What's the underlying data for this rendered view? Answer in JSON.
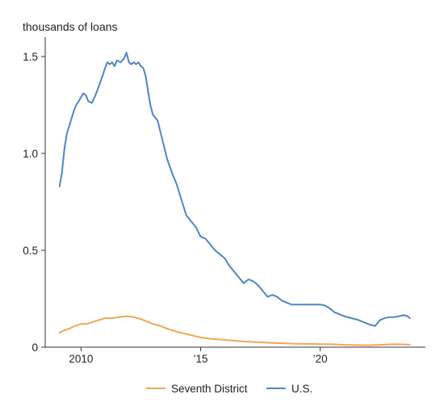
{
  "chart_data": {
    "type": "line",
    "title": "",
    "ylabel": "thousands of loans",
    "xlabel": "",
    "xlim": [
      2008.5,
      2024.4
    ],
    "ylim": [
      0,
      1.6
    ],
    "x_ticks": [
      {
        "value": 2010,
        "label": "2010"
      },
      {
        "value": 2015,
        "label": "’15"
      },
      {
        "value": 2020,
        "label": "’20"
      }
    ],
    "y_ticks": [
      {
        "value": 0,
        "label": "0"
      },
      {
        "value": 0.5,
        "label": "0.5"
      },
      {
        "value": 1.0,
        "label": "1.0"
      },
      {
        "value": 1.5,
        "label": "1.5"
      }
    ],
    "grid": false,
    "legend_position": "bottom-center",
    "series": [
      {
        "name": "Seventh District",
        "color": "#f2a654",
        "points": [
          [
            2009.1,
            0.075
          ],
          [
            2009.25,
            0.085
          ],
          [
            2009.5,
            0.095
          ],
          [
            2009.75,
            0.11
          ],
          [
            2010.0,
            0.12
          ],
          [
            2010.25,
            0.12
          ],
          [
            2010.5,
            0.13
          ],
          [
            2010.75,
            0.14
          ],
          [
            2011.0,
            0.15
          ],
          [
            2011.3,
            0.15
          ],
          [
            2011.6,
            0.155
          ],
          [
            2011.9,
            0.16
          ],
          [
            2012.2,
            0.155
          ],
          [
            2012.5,
            0.145
          ],
          [
            2012.8,
            0.13
          ],
          [
            2013.0,
            0.12
          ],
          [
            2013.3,
            0.11
          ],
          [
            2013.6,
            0.095
          ],
          [
            2014.0,
            0.08
          ],
          [
            2014.5,
            0.065
          ],
          [
            2015.0,
            0.05
          ],
          [
            2015.5,
            0.042
          ],
          [
            2016.0,
            0.038
          ],
          [
            2016.5,
            0.032
          ],
          [
            2017.0,
            0.028
          ],
          [
            2017.5,
            0.025
          ],
          [
            2018.0,
            0.022
          ],
          [
            2018.5,
            0.02
          ],
          [
            2019.0,
            0.018
          ],
          [
            2019.5,
            0.017
          ],
          [
            2020.0,
            0.016
          ],
          [
            2020.5,
            0.015
          ],
          [
            2021.0,
            0.012
          ],
          [
            2021.5,
            0.011
          ],
          [
            2022.0,
            0.01
          ],
          [
            2022.5,
            0.012
          ],
          [
            2023.0,
            0.015
          ],
          [
            2023.5,
            0.014
          ],
          [
            2023.75,
            0.013
          ]
        ]
      },
      {
        "name": "U.S.",
        "color": "#4f86c6",
        "points": [
          [
            2009.1,
            0.83
          ],
          [
            2009.2,
            0.9
          ],
          [
            2009.3,
            1.02
          ],
          [
            2009.4,
            1.1
          ],
          [
            2009.5,
            1.14
          ],
          [
            2009.6,
            1.18
          ],
          [
            2009.7,
            1.22
          ],
          [
            2009.8,
            1.25
          ],
          [
            2009.9,
            1.27
          ],
          [
            2010.0,
            1.29
          ],
          [
            2010.1,
            1.31
          ],
          [
            2010.2,
            1.3
          ],
          [
            2010.3,
            1.27
          ],
          [
            2010.45,
            1.26
          ],
          [
            2010.6,
            1.3
          ],
          [
            2010.75,
            1.35
          ],
          [
            2010.9,
            1.4
          ],
          [
            2011.0,
            1.44
          ],
          [
            2011.1,
            1.47
          ],
          [
            2011.2,
            1.46
          ],
          [
            2011.3,
            1.47
          ],
          [
            2011.4,
            1.45
          ],
          [
            2011.5,
            1.48
          ],
          [
            2011.65,
            1.47
          ],
          [
            2011.8,
            1.49
          ],
          [
            2011.9,
            1.52
          ],
          [
            2012.0,
            1.47
          ],
          [
            2012.1,
            1.46
          ],
          [
            2012.2,
            1.47
          ],
          [
            2012.3,
            1.46
          ],
          [
            2012.4,
            1.47
          ],
          [
            2012.5,
            1.45
          ],
          [
            2012.6,
            1.44
          ],
          [
            2012.7,
            1.4
          ],
          [
            2012.8,
            1.32
          ],
          [
            2012.9,
            1.25
          ],
          [
            2013.0,
            1.2
          ],
          [
            2013.2,
            1.17
          ],
          [
            2013.4,
            1.07
          ],
          [
            2013.6,
            0.97
          ],
          [
            2013.8,
            0.9
          ],
          [
            2014.0,
            0.84
          ],
          [
            2014.2,
            0.76
          ],
          [
            2014.4,
            0.68
          ],
          [
            2014.6,
            0.65
          ],
          [
            2014.8,
            0.62
          ],
          [
            2015.0,
            0.57
          ],
          [
            2015.2,
            0.56
          ],
          [
            2015.4,
            0.53
          ],
          [
            2015.6,
            0.5
          ],
          [
            2015.8,
            0.48
          ],
          [
            2016.0,
            0.46
          ],
          [
            2016.2,
            0.42
          ],
          [
            2016.4,
            0.39
          ],
          [
            2016.6,
            0.36
          ],
          [
            2016.8,
            0.33
          ],
          [
            2017.0,
            0.35
          ],
          [
            2017.2,
            0.34
          ],
          [
            2017.4,
            0.32
          ],
          [
            2017.6,
            0.29
          ],
          [
            2017.8,
            0.26
          ],
          [
            2018.0,
            0.27
          ],
          [
            2018.2,
            0.26
          ],
          [
            2018.4,
            0.24
          ],
          [
            2018.6,
            0.23
          ],
          [
            2018.8,
            0.22
          ],
          [
            2019.0,
            0.22
          ],
          [
            2019.3,
            0.22
          ],
          [
            2019.6,
            0.22
          ],
          [
            2019.9,
            0.22
          ],
          [
            2020.0,
            0.22
          ],
          [
            2020.2,
            0.215
          ],
          [
            2020.4,
            0.2
          ],
          [
            2020.6,
            0.18
          ],
          [
            2020.8,
            0.17
          ],
          [
            2021.0,
            0.16
          ],
          [
            2021.3,
            0.15
          ],
          [
            2021.6,
            0.14
          ],
          [
            2021.9,
            0.125
          ],
          [
            2022.1,
            0.115
          ],
          [
            2022.3,
            0.11
          ],
          [
            2022.5,
            0.14
          ],
          [
            2022.7,
            0.15
          ],
          [
            2022.9,
            0.155
          ],
          [
            2023.1,
            0.155
          ],
          [
            2023.3,
            0.16
          ],
          [
            2023.5,
            0.165
          ],
          [
            2023.65,
            0.16
          ],
          [
            2023.75,
            0.15
          ]
        ]
      }
    ]
  }
}
